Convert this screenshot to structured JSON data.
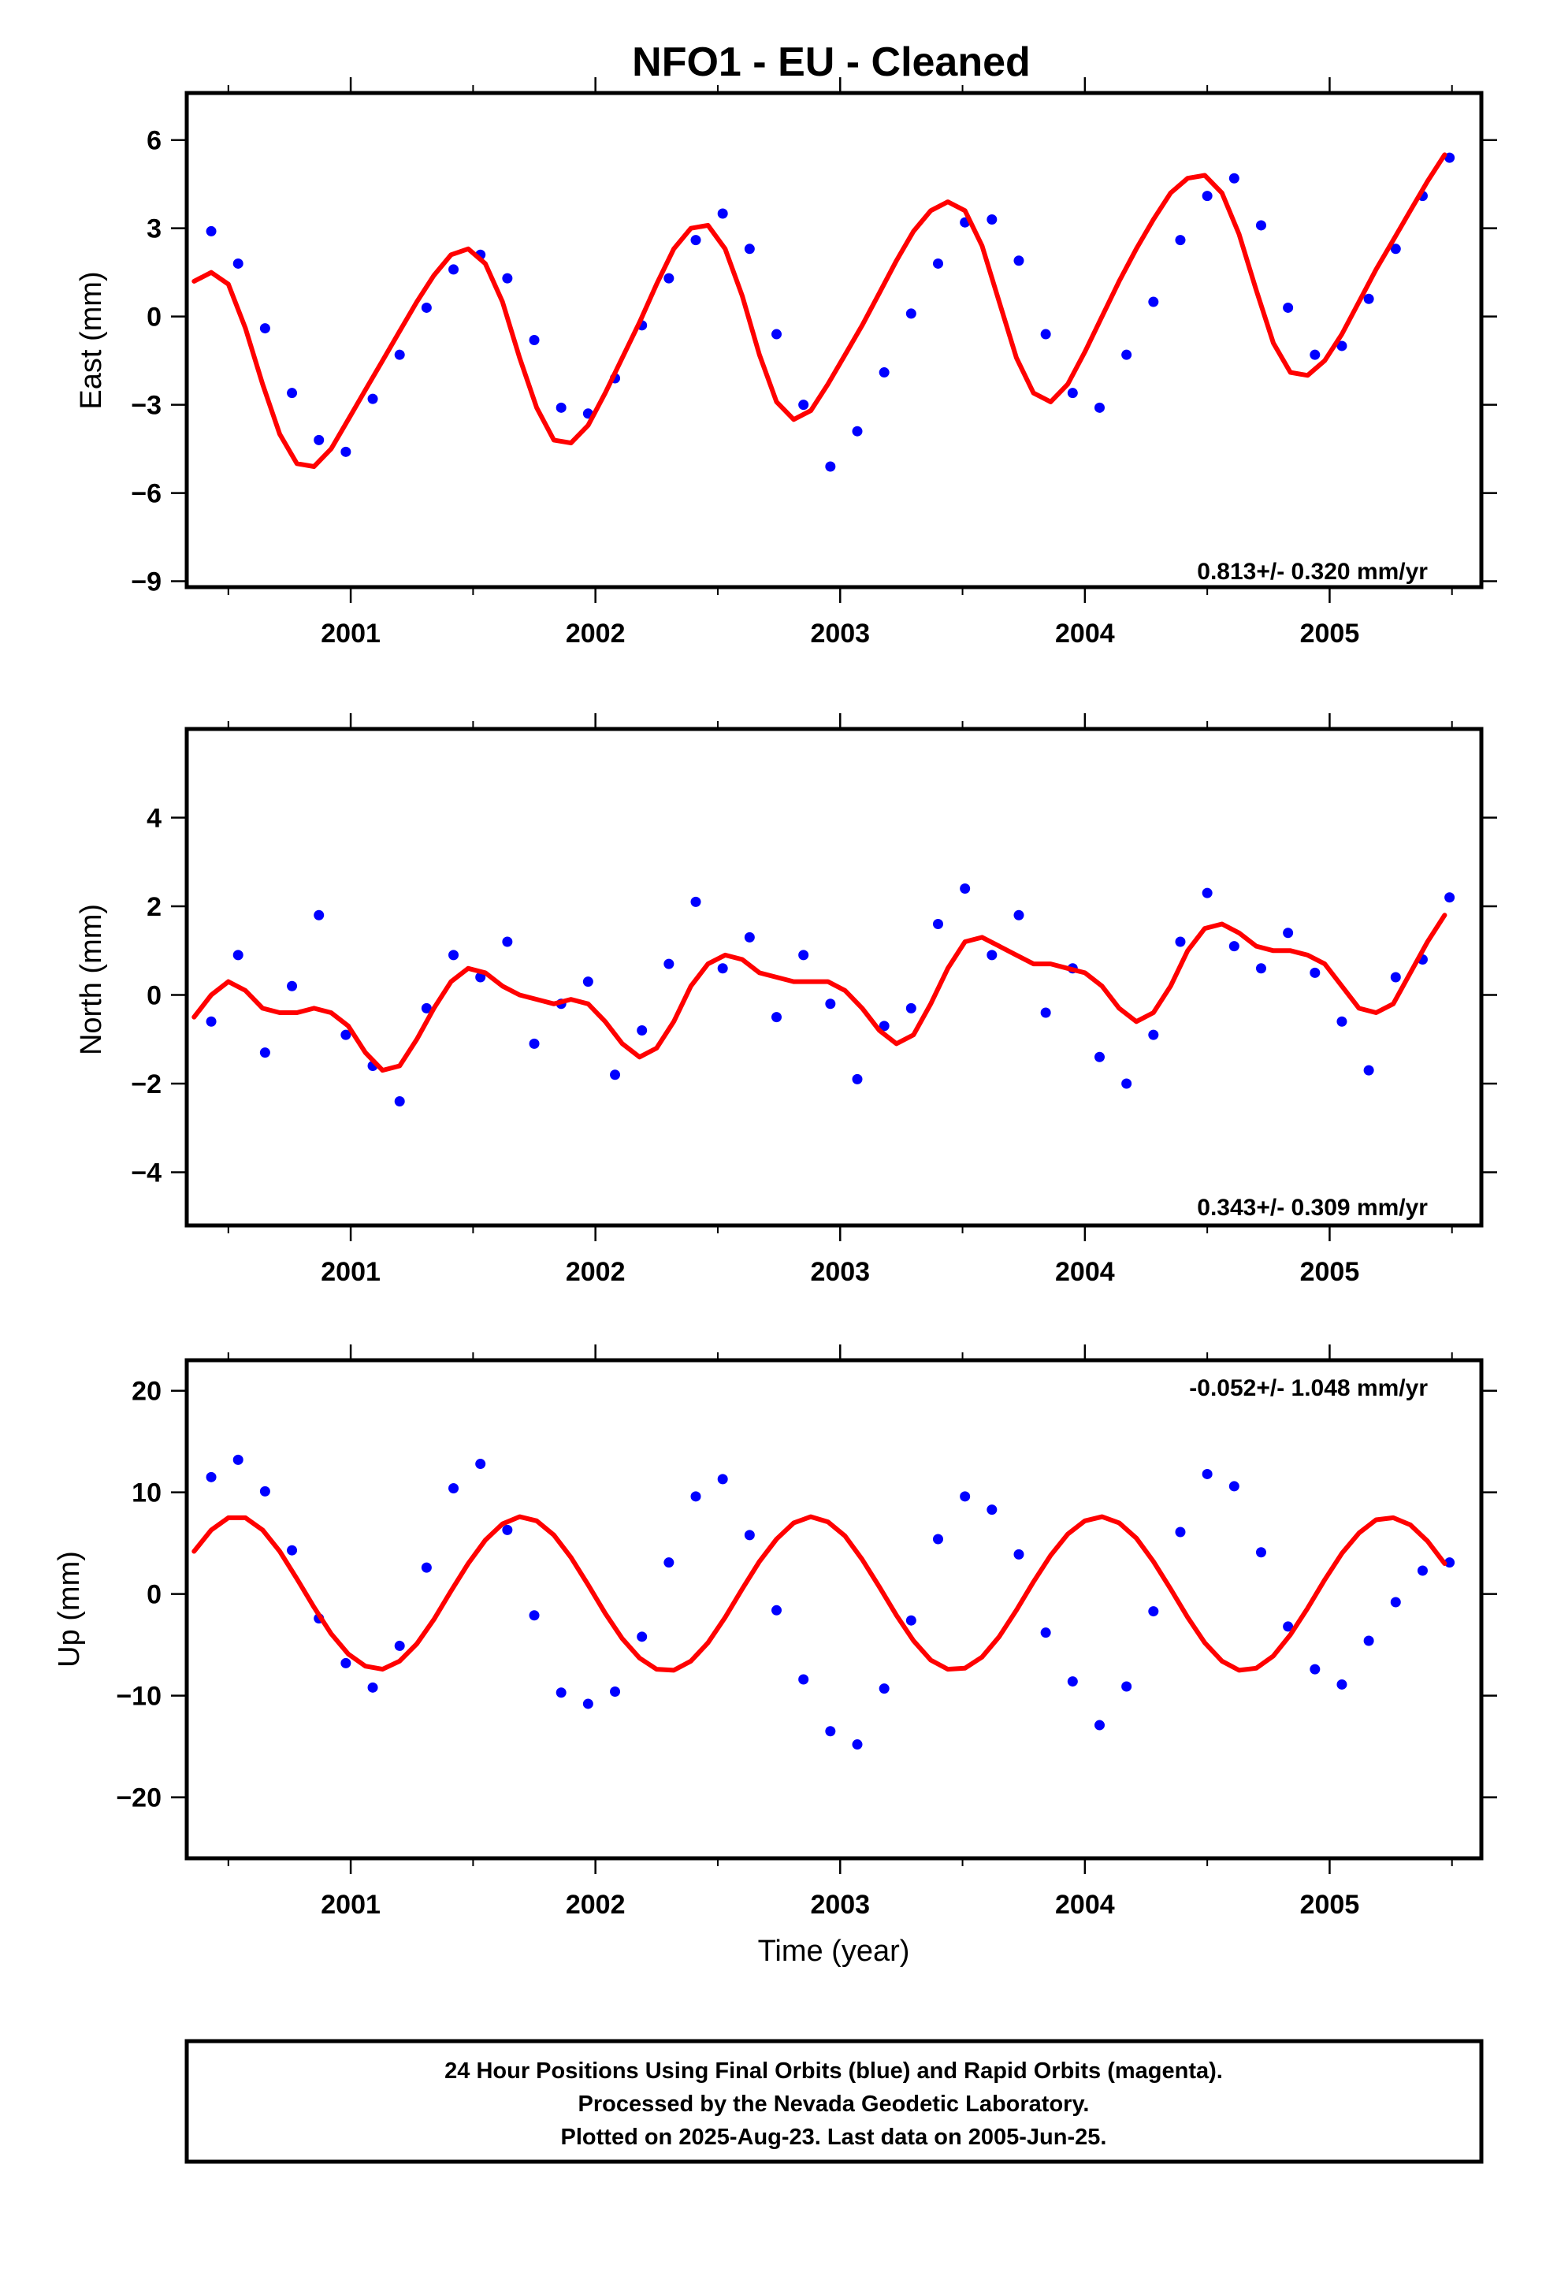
{
  "title": "NFO1  - EU - Cleaned",
  "colors": {
    "final_orbits": "#0000ff",
    "model": "#ff0000",
    "frame": "#000000"
  },
  "footer": {
    "line1": "24 Hour Positions Using Final Orbits (blue) and Rapid Orbits (magenta).",
    "line2": "Processed by the Nevada Geodetic Laboratory.",
    "line3": "Plotted on 2025-Aug-23. Last data on 2005-Jun-25."
  },
  "chart_data": [
    {
      "type": "scatter",
      "id": "east",
      "title": "",
      "ylabel": "East (mm)",
      "xlabel": "",
      "xlim": [
        2000.33,
        2005.62
      ],
      "ylim": [
        -9.2,
        7.6
      ],
      "yticks": [
        -9,
        -6,
        -3,
        0,
        3,
        6
      ],
      "ytick_labels": [
        "−9",
        "−6",
        "−3",
        "0",
        "3",
        "6"
      ],
      "xticks": [
        2001,
        2002,
        2003,
        2004,
        2005
      ],
      "xtick_labels": [
        "2001",
        "2002",
        "2003",
        "2004",
        "2005"
      ],
      "rate_label": "0.813+/- 0.320 mm/yr",
      "rate_position": "bottom-right",
      "grid": false,
      "series": [
        {
          "kind": "points",
          "color": "#0000ff",
          "x": [
            2000.43,
            2000.54,
            2000.65,
            2000.76,
            2000.87,
            2000.98,
            2001.09,
            2001.2,
            2001.31,
            2001.42,
            2001.53,
            2001.64,
            2001.75,
            2001.86,
            2001.97,
            2002.08,
            2002.19,
            2002.3,
            2002.41,
            2002.52,
            2002.63,
            2002.74,
            2002.85,
            2002.96,
            2003.07,
            2003.18,
            2003.29,
            2003.4,
            2003.51,
            2003.62,
            2003.73,
            2003.84,
            2003.95,
            2004.06,
            2004.17,
            2004.28,
            2004.39,
            2004.5,
            2004.61,
            2004.72,
            2004.83,
            2004.94,
            2005.05,
            2005.16,
            2005.27,
            2005.38,
            2005.49
          ],
          "y": [
            2.9,
            1.8,
            -0.4,
            -2.6,
            -4.2,
            -4.6,
            -2.8,
            -1.3,
            0.3,
            1.6,
            2.1,
            1.3,
            -0.8,
            -3.1,
            -3.3,
            -2.1,
            -0.3,
            1.3,
            2.6,
            3.5,
            2.3,
            -0.6,
            -3.0,
            -5.1,
            -3.9,
            -1.9,
            0.1,
            1.8,
            3.2,
            3.3,
            1.9,
            -0.6,
            -2.6,
            -3.1,
            -1.3,
            0.5,
            2.6,
            4.1,
            4.7,
            3.1,
            0.3,
            -1.3,
            -1.0,
            0.6,
            2.3,
            4.1,
            5.4
          ]
        },
        {
          "kind": "line",
          "color": "#ff0000",
          "x": [
            2000.36,
            2000.43,
            2000.5,
            2000.57,
            2000.64,
            2000.71,
            2000.78,
            2000.85,
            2000.92,
            2000.99,
            2001.06,
            2001.13,
            2001.2,
            2001.27,
            2001.34,
            2001.41,
            2001.48,
            2001.55,
            2001.62,
            2001.69,
            2001.76,
            2001.83,
            2001.9,
            2001.97,
            2002.04,
            2002.11,
            2002.18,
            2002.25,
            2002.32,
            2002.39,
            2002.46,
            2002.53,
            2002.6,
            2002.67,
            2002.74,
            2002.81,
            2002.88,
            2002.95,
            2003.02,
            2003.09,
            2003.16,
            2003.23,
            2003.3,
            2003.37,
            2003.44,
            2003.51,
            2003.58,
            2003.65,
            2003.72,
            2003.79,
            2003.86,
            2003.93,
            2004.0,
            2004.07,
            2004.14,
            2004.21,
            2004.28,
            2004.35,
            2004.42,
            2004.49,
            2004.56,
            2004.63,
            2004.7,
            2004.77,
            2004.84,
            2004.91,
            2004.98,
            2005.05,
            2005.12,
            2005.19,
            2005.26,
            2005.33,
            2005.4,
            2005.47
          ],
          "y": [
            1.2,
            1.5,
            1.1,
            -0.4,
            -2.3,
            -4.0,
            -5.0,
            -5.1,
            -4.5,
            -3.5,
            -2.5,
            -1.5,
            -0.5,
            0.5,
            1.4,
            2.1,
            2.3,
            1.8,
            0.5,
            -1.4,
            -3.1,
            -4.2,
            -4.3,
            -3.7,
            -2.6,
            -1.4,
            -0.2,
            1.1,
            2.3,
            3.0,
            3.1,
            2.3,
            0.7,
            -1.3,
            -2.9,
            -3.5,
            -3.2,
            -2.3,
            -1.3,
            -0.3,
            0.8,
            1.9,
            2.9,
            3.6,
            3.9,
            3.6,
            2.4,
            0.5,
            -1.4,
            -2.6,
            -2.9,
            -2.3,
            -1.2,
            0.0,
            1.2,
            2.3,
            3.3,
            4.2,
            4.7,
            4.8,
            4.2,
            2.8,
            0.9,
            -0.9,
            -1.9,
            -2.0,
            -1.5,
            -0.6,
            0.5,
            1.6,
            2.6,
            3.6,
            4.6,
            5.5
          ]
        }
      ]
    },
    {
      "type": "scatter",
      "id": "north",
      "title": "",
      "ylabel": "North (mm)",
      "xlabel": "",
      "xlim": [
        2000.33,
        2005.62
      ],
      "ylim": [
        -5.2,
        6.0
      ],
      "yticks": [
        -4,
        -2,
        0,
        2,
        4
      ],
      "ytick_labels": [
        "−4",
        "−2",
        "0",
        "2",
        "4"
      ],
      "xticks": [
        2001,
        2002,
        2003,
        2004,
        2005
      ],
      "xtick_labels": [
        "2001",
        "2002",
        "2003",
        "2004",
        "2005"
      ],
      "rate_label": "0.343+/- 0.309 mm/yr",
      "rate_position": "bottom-right",
      "grid": false,
      "series": [
        {
          "kind": "points",
          "color": "#0000ff",
          "x": [
            2000.43,
            2000.54,
            2000.65,
            2000.76,
            2000.87,
            2000.98,
            2001.09,
            2001.2,
            2001.31,
            2001.42,
            2001.53,
            2001.64,
            2001.75,
            2001.86,
            2001.97,
            2002.08,
            2002.19,
            2002.3,
            2002.41,
            2002.52,
            2002.63,
            2002.74,
            2002.85,
            2002.96,
            2003.07,
            2003.18,
            2003.29,
            2003.4,
            2003.51,
            2003.62,
            2003.73,
            2003.84,
            2003.95,
            2004.06,
            2004.17,
            2004.28,
            2004.39,
            2004.5,
            2004.61,
            2004.72,
            2004.83,
            2004.94,
            2005.05,
            2005.16,
            2005.27,
            2005.38,
            2005.49
          ],
          "y": [
            -0.6,
            0.9,
            -1.3,
            0.2,
            1.8,
            -0.9,
            -1.6,
            -2.4,
            -0.3,
            0.9,
            0.4,
            1.2,
            -1.1,
            -0.2,
            0.3,
            -1.8,
            -0.8,
            0.7,
            2.1,
            0.6,
            1.3,
            -0.5,
            0.9,
            -0.2,
            -1.9,
            -0.7,
            -0.3,
            1.6,
            2.4,
            0.9,
            1.8,
            -0.4,
            0.6,
            -1.4,
            -2.0,
            -0.9,
            1.2,
            2.3,
            1.1,
            0.6,
            1.4,
            0.5,
            -0.6,
            -1.7,
            0.4,
            0.8,
            2.2
          ]
        },
        {
          "kind": "line",
          "color": "#ff0000",
          "x": [
            2000.36,
            2000.43,
            2000.5,
            2000.57,
            2000.64,
            2000.71,
            2000.78,
            2000.85,
            2000.92,
            2000.99,
            2001.06,
            2001.13,
            2001.2,
            2001.27,
            2001.34,
            2001.41,
            2001.48,
            2001.55,
            2001.62,
            2001.69,
            2001.76,
            2001.83,
            2001.9,
            2001.97,
            2002.04,
            2002.11,
            2002.18,
            2002.25,
            2002.32,
            2002.39,
            2002.46,
            2002.53,
            2002.6,
            2002.67,
            2002.74,
            2002.81,
            2002.88,
            2002.95,
            2003.02,
            2003.09,
            2003.16,
            2003.23,
            2003.3,
            2003.37,
            2003.44,
            2003.51,
            2003.58,
            2003.65,
            2003.72,
            2003.79,
            2003.86,
            2003.93,
            2004.0,
            2004.07,
            2004.14,
            2004.21,
            2004.28,
            2004.35,
            2004.42,
            2004.49,
            2004.56,
            2004.63,
            2004.7,
            2004.77,
            2004.84,
            2004.91,
            2004.98,
            2005.05,
            2005.12,
            2005.19,
            2005.26,
            2005.33,
            2005.4,
            2005.47
          ],
          "y": [
            -0.5,
            0.0,
            0.3,
            0.1,
            -0.3,
            -0.4,
            -0.4,
            -0.3,
            -0.4,
            -0.7,
            -1.3,
            -1.7,
            -1.6,
            -1.0,
            -0.3,
            0.3,
            0.6,
            0.5,
            0.2,
            0.0,
            -0.1,
            -0.2,
            -0.1,
            -0.2,
            -0.6,
            -1.1,
            -1.4,
            -1.2,
            -0.6,
            0.2,
            0.7,
            0.9,
            0.8,
            0.5,
            0.4,
            0.3,
            0.3,
            0.3,
            0.1,
            -0.3,
            -0.8,
            -1.1,
            -0.9,
            -0.2,
            0.6,
            1.2,
            1.3,
            1.1,
            0.9,
            0.7,
            0.7,
            0.6,
            0.5,
            0.2,
            -0.3,
            -0.6,
            -0.4,
            0.2,
            1.0,
            1.5,
            1.6,
            1.4,
            1.1,
            1.0,
            1.0,
            0.9,
            0.7,
            0.2,
            -0.3,
            -0.4,
            -0.2,
            0.5,
            1.2,
            1.8
          ]
        }
      ]
    },
    {
      "type": "scatter",
      "id": "up",
      "title": "",
      "ylabel": "Up (mm)",
      "xlabel": "Time (year)",
      "xlim": [
        2000.33,
        2005.62
      ],
      "ylim": [
        -26,
        23
      ],
      "yticks": [
        -20,
        -10,
        0,
        10,
        20
      ],
      "ytick_labels": [
        "−20",
        "−10",
        "0",
        "10",
        "20"
      ],
      "xticks": [
        2001,
        2002,
        2003,
        2004,
        2005
      ],
      "xtick_labels": [
        "2001",
        "2002",
        "2003",
        "2004",
        "2005"
      ],
      "rate_label": "-0.052+/- 1.048 mm/yr",
      "rate_position": "top-right",
      "grid": false,
      "series": [
        {
          "kind": "points",
          "color": "#0000ff",
          "x": [
            2000.43,
            2000.54,
            2000.65,
            2000.76,
            2000.87,
            2000.98,
            2001.09,
            2001.2,
            2001.31,
            2001.42,
            2001.53,
            2001.64,
            2001.75,
            2001.86,
            2001.97,
            2002.08,
            2002.19,
            2002.3,
            2002.41,
            2002.52,
            2002.63,
            2002.74,
            2002.85,
            2002.96,
            2003.07,
            2003.18,
            2003.29,
            2003.4,
            2003.51,
            2003.62,
            2003.73,
            2003.84,
            2003.95,
            2004.06,
            2004.17,
            2004.28,
            2004.39,
            2004.5,
            2004.61,
            2004.72,
            2004.83,
            2004.94,
            2005.05,
            2005.16,
            2005.27,
            2005.38,
            2005.49
          ],
          "y": [
            11.5,
            13.2,
            10.1,
            4.3,
            -2.4,
            -6.8,
            -9.2,
            -5.1,
            2.6,
            10.4,
            12.8,
            6.3,
            -2.1,
            -9.7,
            -10.8,
            -9.6,
            -4.2,
            3.1,
            9.6,
            11.3,
            5.8,
            -1.6,
            -8.4,
            -13.5,
            -14.8,
            -9.3,
            -2.6,
            5.4,
            9.6,
            8.3,
            3.9,
            -3.8,
            -8.6,
            -12.9,
            -9.1,
            -1.7,
            6.1,
            11.8,
            10.6,
            4.1,
            -3.2,
            -7.4,
            -8.9,
            -4.6,
            -0.8,
            2.3,
            3.1
          ]
        },
        {
          "kind": "line",
          "color": "#ff0000",
          "x": [
            2000.36,
            2000.43,
            2000.5,
            2000.57,
            2000.64,
            2000.71,
            2000.78,
            2000.85,
            2000.92,
            2000.99,
            2001.06,
            2001.13,
            2001.2,
            2001.27,
            2001.34,
            2001.41,
            2001.48,
            2001.55,
            2001.62,
            2001.69,
            2001.76,
            2001.83,
            2001.9,
            2001.97,
            2002.04,
            2002.11,
            2002.18,
            2002.25,
            2002.32,
            2002.39,
            2002.46,
            2002.53,
            2002.6,
            2002.67,
            2002.74,
            2002.81,
            2002.88,
            2002.95,
            2003.02,
            2003.09,
            2003.16,
            2003.23,
            2003.3,
            2003.37,
            2003.44,
            2003.51,
            2003.58,
            2003.65,
            2003.72,
            2003.79,
            2003.86,
            2003.93,
            2004.0,
            2004.07,
            2004.14,
            2004.21,
            2004.28,
            2004.35,
            2004.42,
            2004.49,
            2004.56,
            2004.63,
            2004.7,
            2004.77,
            2004.84,
            2004.91,
            2004.98,
            2005.05,
            2005.12,
            2005.19,
            2005.26,
            2005.33,
            2005.4,
            2005.47
          ],
          "y": [
            4.2,
            6.3,
            7.5,
            7.5,
            6.3,
            4.2,
            1.5,
            -1.3,
            -3.9,
            -5.9,
            -7.1,
            -7.4,
            -6.6,
            -4.9,
            -2.5,
            0.3,
            3.0,
            5.3,
            6.9,
            7.6,
            7.2,
            5.8,
            3.6,
            0.9,
            -1.9,
            -4.4,
            -6.3,
            -7.4,
            -7.5,
            -6.6,
            -4.8,
            -2.3,
            0.5,
            3.2,
            5.4,
            7.0,
            7.6,
            7.1,
            5.7,
            3.4,
            0.7,
            -2.1,
            -4.6,
            -6.5,
            -7.4,
            -7.3,
            -6.2,
            -4.2,
            -1.6,
            1.2,
            3.8,
            5.9,
            7.2,
            7.6,
            7.0,
            5.5,
            3.2,
            0.5,
            -2.3,
            -4.8,
            -6.6,
            -7.5,
            -7.3,
            -6.1,
            -4.0,
            -1.4,
            1.4,
            4.0,
            6.0,
            7.3,
            7.5,
            6.8,
            5.2,
            3.0
          ]
        }
      ]
    }
  ]
}
